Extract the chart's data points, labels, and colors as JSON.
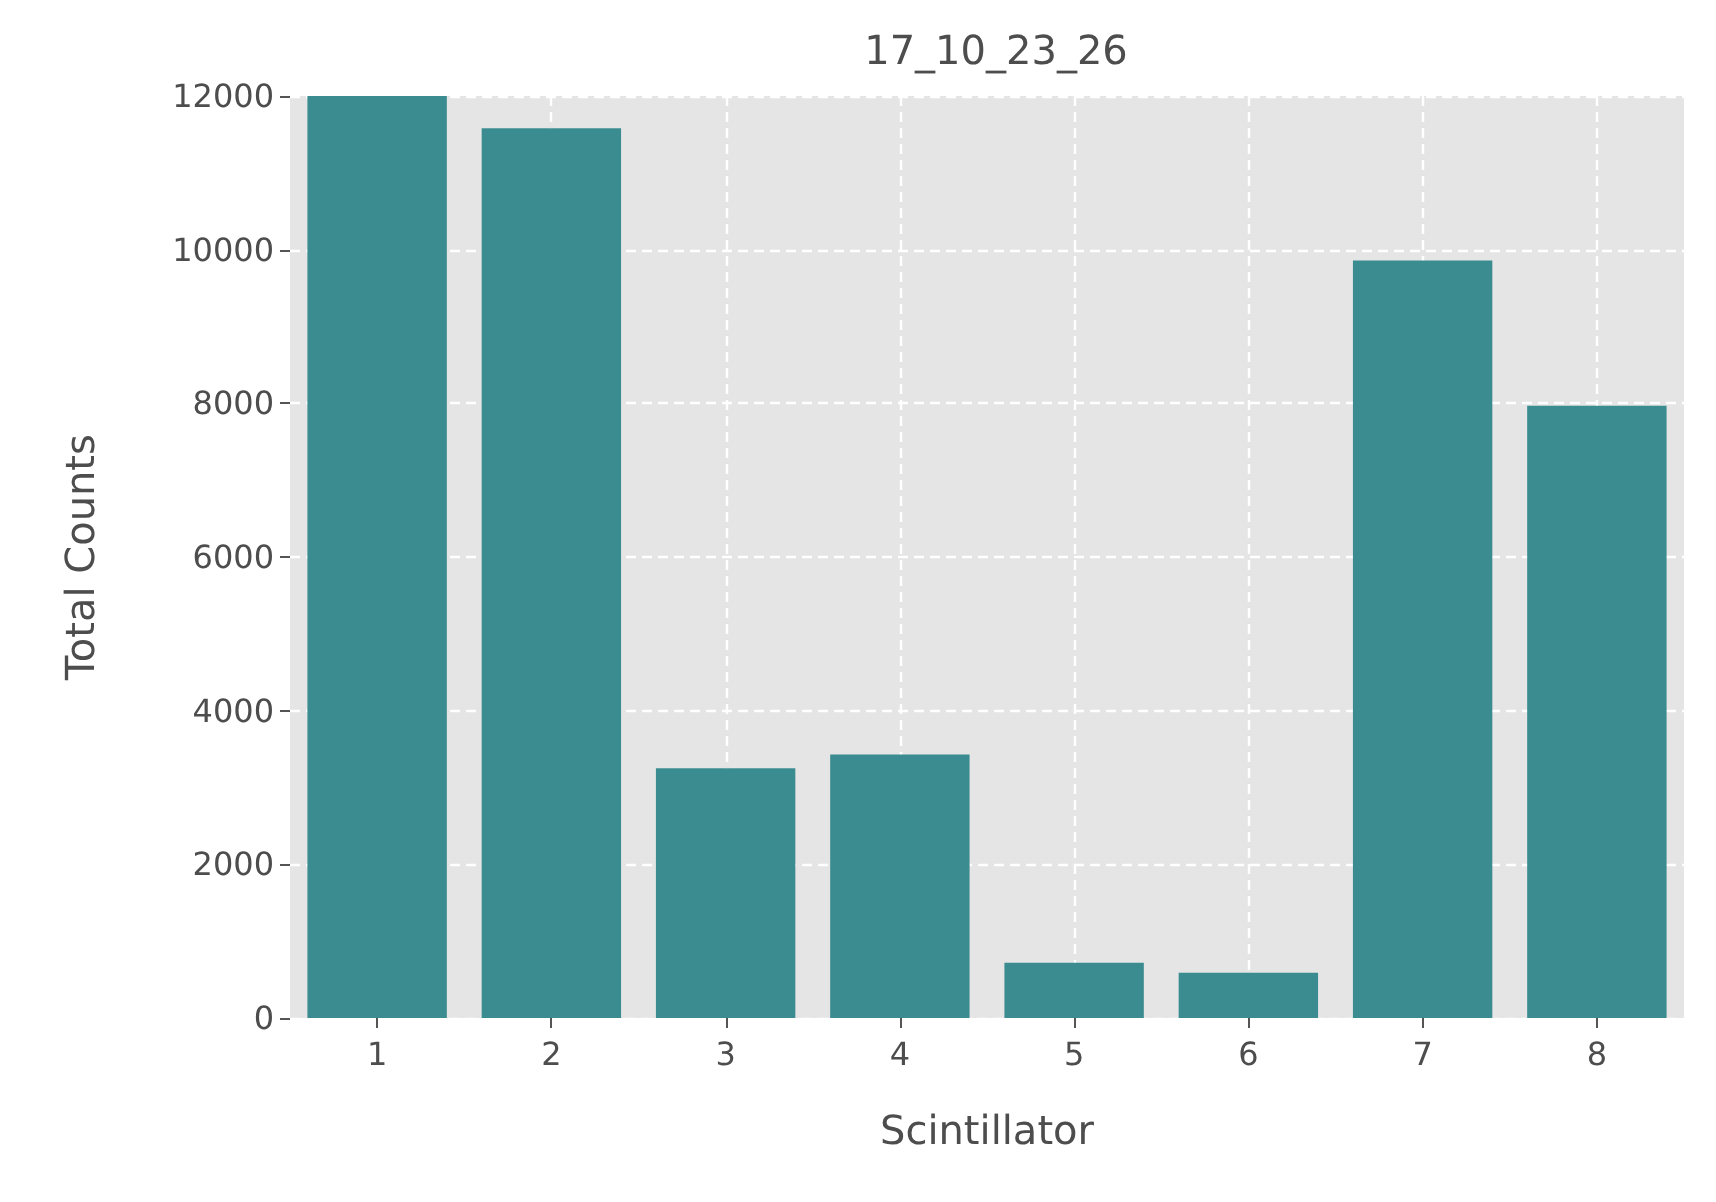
{
  "chart_data": {
    "type": "bar",
    "title": "17_10_23_26",
    "xlabel": "Scintillator",
    "ylabel": "Total Counts",
    "categories": [
      "1",
      "2",
      "3",
      "4",
      "5",
      "6",
      "7",
      "8"
    ],
    "values": [
      12000,
      11580,
      3250,
      3430,
      720,
      590,
      9860,
      7970
    ],
    "color": "#3a8c91",
    "ylim": [
      0,
      12000
    ],
    "yticks": [
      0,
      2000,
      4000,
      6000,
      8000,
      10000,
      12000
    ],
    "grid": true
  }
}
